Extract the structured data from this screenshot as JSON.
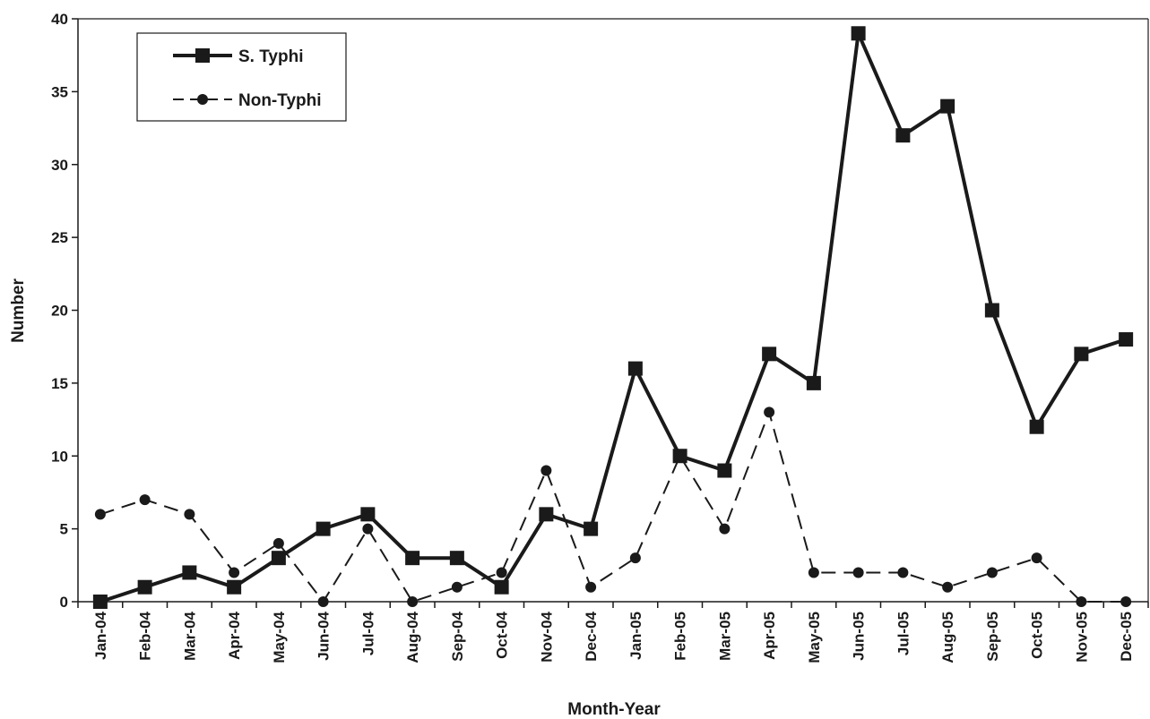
{
  "chart_data": {
    "type": "line",
    "title": "",
    "xlabel": "Month-Year",
    "ylabel": "Number",
    "ylim": [
      0,
      40
    ],
    "yticks": [
      0,
      5,
      10,
      15,
      20,
      25,
      30,
      35,
      40
    ],
    "grid": false,
    "legend_position": "top-left",
    "categories": [
      "Jan-04",
      "Feb-04",
      "Mar-04",
      "Apr-04",
      "May-04",
      "Jun-04",
      "Jul-04",
      "Aug-04",
      "Sep-04",
      "Oct-04",
      "Nov-04",
      "Dec-04",
      "Jan-05",
      "Feb-05",
      "Mar-05",
      "Apr-05",
      "May-05",
      "Jun-05",
      "Jul-05",
      "Aug-05",
      "Sep-05",
      "Oct-05",
      "Nov-05",
      "Dec-05"
    ],
    "series": [
      {
        "name": "S. Typhi",
        "line_style": "solid",
        "marker": "square",
        "color": "#1a1a1a",
        "values": [
          0,
          1,
          2,
          1,
          3,
          5,
          6,
          3,
          3,
          1,
          6,
          5,
          16,
          10,
          9,
          17,
          15,
          39,
          32,
          34,
          20,
          12,
          17,
          18
        ]
      },
      {
        "name": "Non-Typhi",
        "line_style": "dashed",
        "marker": "circle",
        "color": "#1a1a1a",
        "values": [
          6,
          7,
          6,
          2,
          4,
          0,
          5,
          0,
          1,
          2,
          9,
          1,
          3,
          10,
          5,
          13,
          2,
          2,
          2,
          1,
          2,
          3,
          0,
          0
        ]
      }
    ]
  }
}
